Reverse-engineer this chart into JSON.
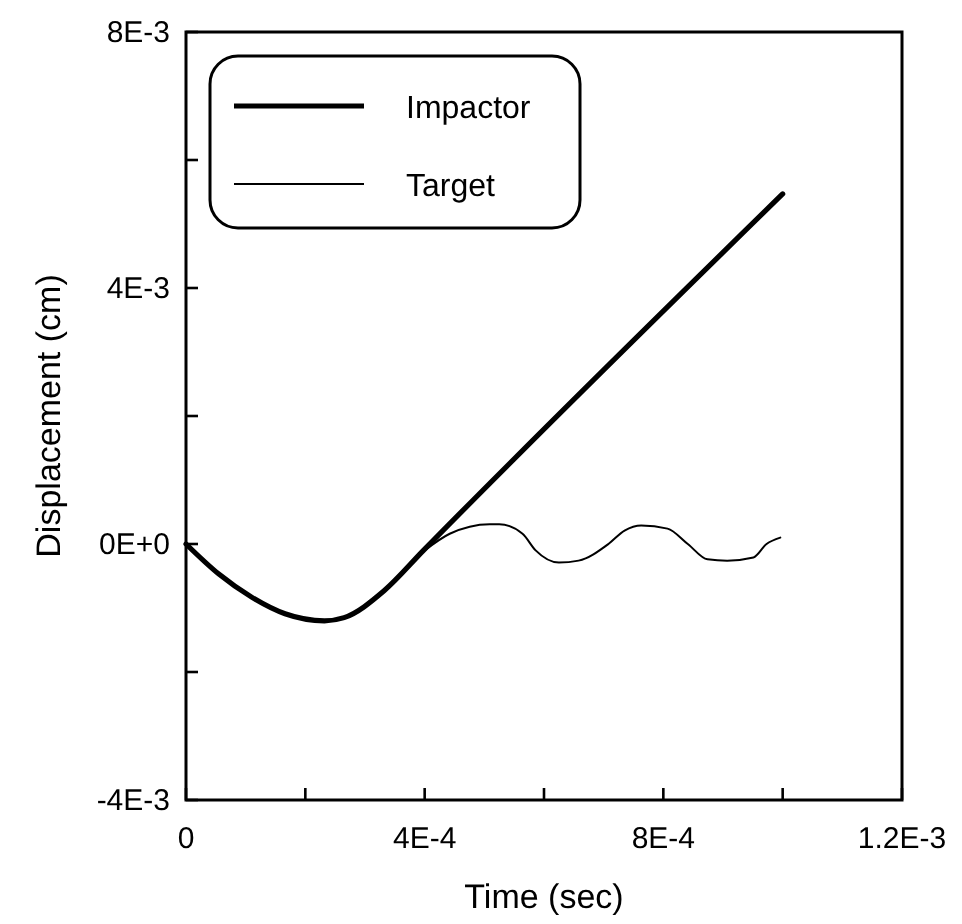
{
  "chart_data": {
    "type": "line",
    "xlabel": "Time (sec)",
    "ylabel": "Displacement (cm)",
    "xlim": [
      0,
      0.0012
    ],
    "ylim": [
      -0.004,
      0.008
    ],
    "xticks": [
      {
        "value": 0,
        "label": "0"
      },
      {
        "value": 0.0002,
        "label": null
      },
      {
        "value": 0.0004,
        "label": "4E-4"
      },
      {
        "value": 0.0006,
        "label": null
      },
      {
        "value": 0.0008,
        "label": "8E-4"
      },
      {
        "value": 0.001,
        "label": null
      },
      {
        "value": 0.0012,
        "label": "1.2E-3"
      }
    ],
    "yticks": [
      {
        "value": -0.004,
        "label": "-4E-3"
      },
      {
        "value": -0.002,
        "label": null
      },
      {
        "value": 0,
        "label": "0E+0"
      },
      {
        "value": 0.002,
        "label": null
      },
      {
        "value": 0.004,
        "label": "4E-3"
      },
      {
        "value": 0.006,
        "label": null
      },
      {
        "value": 0.008,
        "label": "8E-3"
      }
    ],
    "legend": "top left",
    "grid": false,
    "marker": "none",
    "series": [
      {
        "name": "Impactor",
        "color": "#000000",
        "x": [
          0,
          5.5e-05,
          0.00011,
          0.000166,
          0.000232,
          0.000265,
          0.000332,
          0.000398,
          0.001
        ],
        "values": [
          0,
          -0.00047,
          -0.00083,
          -0.00109,
          -0.0012,
          -0.00115,
          -0.00073,
          -0.0001,
          0.00547
        ]
      },
      {
        "name": "Target",
        "color": "#000000",
        "x": [
          0.0004,
          0.000442,
          0.000509,
          0.000525,
          0.000564,
          0.000586,
          0.000625,
          0.000658,
          0.000708,
          0.000735,
          0.000763,
          0.000807,
          0.000841,
          0.000874,
          0.000907,
          0.000951,
          0.000973,
          0.000996
        ],
        "values": [
          -0.0001,
          0.00016,
          0.00031,
          0.00031,
          0.00016,
          -0.0001,
          -0.00029,
          -0.00026,
          0,
          0.00021,
          0.00029,
          0.00024,
          0,
          -0.00024,
          -0.00026,
          -0.00021,
          0,
          0.0001
        ]
      }
    ]
  }
}
